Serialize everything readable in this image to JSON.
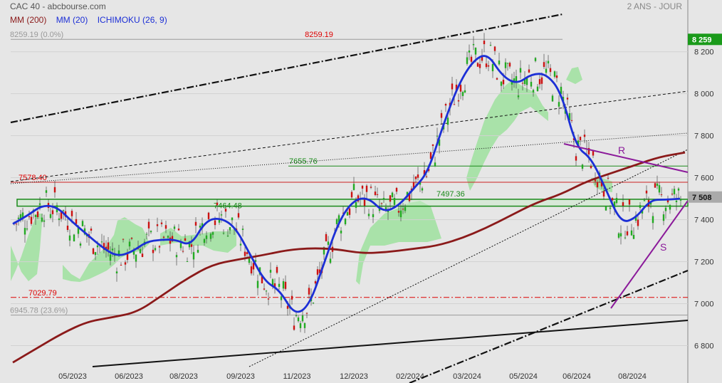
{
  "header": {
    "title": "CAC 40 - abcbourse.com",
    "period": "2 ANS - JOUR",
    "legend": [
      {
        "label": "MM (200)",
        "color": "#8b1a1a"
      },
      {
        "label": "MM (20)",
        "color": "#1c2fd6"
      },
      {
        "label": "ICHIMOKU (26, 9)",
        "color": "#1c2fd6"
      }
    ]
  },
  "chart_data": {
    "type": "line",
    "ylim": [
      6730,
      8330
    ],
    "y_ticks": [
      "6 800",
      "7 000",
      "7 200",
      "7 400",
      "7 600",
      "7 800",
      "8 000",
      "8 200"
    ],
    "x_ticks": [
      "05/2023",
      "06/2023",
      "08/2023",
      "09/2023",
      "11/2023",
      "12/2023",
      "02/2024",
      "03/2024",
      "05/2024",
      "06/2024",
      "08/2024"
    ],
    "price_tags": [
      {
        "label": "8 259",
        "value": 8259,
        "color": "#1a9a1a"
      },
      {
        "label": "7 508",
        "value": 7508,
        "color": "#aaaaaa"
      }
    ],
    "levels": [
      {
        "label": "8259.19",
        "value": 8259.19,
        "color": "#dd0000"
      },
      {
        "label": "8259.19  (0.0%)",
        "value": 8259.19,
        "color": "#999999"
      },
      {
        "label": "7578.40",
        "value": 7578.4,
        "color": "#dd0000"
      },
      {
        "label": "7655.76",
        "value": 7655.76,
        "color": "#1a8a1a"
      },
      {
        "label": "7497.36",
        "value": 7497.36,
        "color": "#1a8a1a"
      },
      {
        "label": "7464.48",
        "value": 7464.48,
        "color": "#1a8a1a"
      },
      {
        "label": "7029.79",
        "value": 7029.79,
        "color": "#dd0000"
      },
      {
        "label": "6945.78  (23.6%)",
        "value": 6945.78,
        "color": "#999999"
      }
    ],
    "annotations": [
      "R",
      "S"
    ],
    "series": [
      {
        "color": "#1c2fd6",
        "values": [
          7380,
          7420,
          7470,
          7460,
          7390,
          7330,
          7270,
          7225,
          7245,
          7295,
          7305,
          7305,
          7275,
          7395,
          7410,
          7365,
          7235,
          7105,
          7065,
          6945,
          6990,
          7195,
          7395,
          7495,
          7505,
          7435,
          7465,
          7545,
          7625,
          7845,
          8035,
          8155,
          8195,
          8085,
          8045,
          8095,
          8095,
          8005,
          7745,
          7695,
          7545,
          7385,
          7405,
          7495,
          7495,
          7500
        ]
      },
      {
        "color": "#8b1a1a",
        "values": [
          6720,
          6790,
          6860,
          6915,
          6935,
          6960,
          7040,
          7120,
          7185,
          7210,
          7230,
          7255,
          7265,
          7260,
          7240,
          7245,
          7260,
          7275,
          7310,
          7360,
          7420,
          7480,
          7520,
          7580,
          7620,
          7660,
          7700,
          7720
        ]
      }
    ]
  }
}
